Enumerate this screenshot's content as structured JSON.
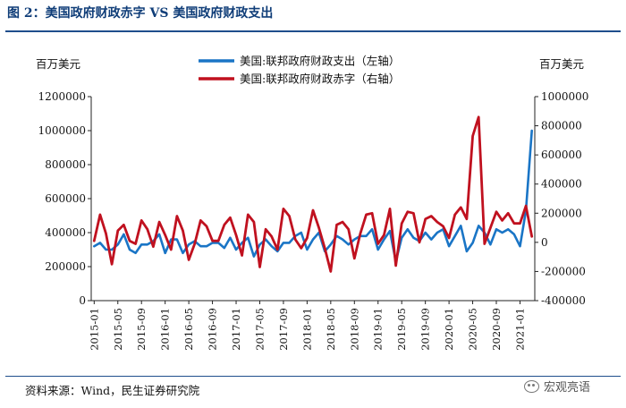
{
  "figure": {
    "title": "图 2：美国政府财政赤字 VS 美国政府财政支出",
    "source": "资料来源：Wind，民生证券研究院",
    "watermark": "宏观亮语"
  },
  "chart_data": {
    "type": "line",
    "y_left_label": "百万美元",
    "y_right_label": "百万美元",
    "y_left_lim": [
      0,
      1200000
    ],
    "y_right_lim": [
      -400000,
      1000000
    ],
    "y_left_ticks": [
      "0",
      "200000",
      "400000",
      "600000",
      "800000",
      "1000000",
      "1200000"
    ],
    "y_right_ticks": [
      "-400000",
      "-200000",
      "0",
      "200000",
      "400000",
      "600000",
      "800000",
      "1000000"
    ],
    "x_tick_labels": [
      "2015-01",
      "2015-05",
      "2015-09",
      "2016-01",
      "2016-05",
      "2016-09",
      "2017-01",
      "2017-05",
      "2017-09",
      "2018-01",
      "2018-05",
      "2018-09",
      "2019-01",
      "2019-05",
      "2019-09",
      "2020-01",
      "2020-05",
      "2020-09",
      "2021-01"
    ],
    "x": [
      "2015-01",
      "2015-02",
      "2015-03",
      "2015-04",
      "2015-05",
      "2015-06",
      "2015-07",
      "2015-08",
      "2015-09",
      "2015-10",
      "2015-11",
      "2015-12",
      "2016-01",
      "2016-02",
      "2016-03",
      "2016-04",
      "2016-05",
      "2016-06",
      "2016-07",
      "2016-08",
      "2016-09",
      "2016-10",
      "2016-11",
      "2016-12",
      "2017-01",
      "2017-02",
      "2017-03",
      "2017-04",
      "2017-05",
      "2017-06",
      "2017-07",
      "2017-08",
      "2017-09",
      "2017-10",
      "2017-11",
      "2017-12",
      "2018-01",
      "2018-02",
      "2018-03",
      "2018-04",
      "2018-05",
      "2018-06",
      "2018-07",
      "2018-08",
      "2018-09",
      "2018-10",
      "2018-11",
      "2018-12",
      "2019-01",
      "2019-02",
      "2019-03",
      "2019-04",
      "2019-05",
      "2019-06",
      "2019-07",
      "2019-08",
      "2019-09",
      "2019-10",
      "2019-11",
      "2019-12",
      "2020-01",
      "2020-02",
      "2020-03",
      "2020-04",
      "2020-05",
      "2020-06",
      "2020-07",
      "2020-08",
      "2020-09",
      "2020-10",
      "2020-11",
      "2020-12",
      "2021-01",
      "2021-02",
      "2021-03"
    ],
    "legend_position": "top",
    "series": [
      {
        "name": "美国:联邦政府财政支出（左轴）",
        "axis": "left",
        "color": "#1a75c6",
        "values": [
          320000,
          340000,
          300000,
          300000,
          330000,
          390000,
          300000,
          280000,
          330000,
          330000,
          350000,
          390000,
          280000,
          360000,
          360000,
          280000,
          330000,
          350000,
          320000,
          320000,
          340000,
          340000,
          310000,
          370000,
          300000,
          340000,
          370000,
          260000,
          330000,
          360000,
          320000,
          290000,
          340000,
          340000,
          380000,
          400000,
          300000,
          360000,
          400000,
          290000,
          330000,
          380000,
          360000,
          330000,
          360000,
          380000,
          380000,
          420000,
          300000,
          360000,
          410000,
          230000,
          370000,
          420000,
          370000,
          350000,
          400000,
          360000,
          400000,
          420000,
          320000,
          380000,
          440000,
          290000,
          340000,
          440000,
          400000,
          330000,
          420000,
          400000,
          420000,
          390000,
          320000,
          530000,
          1000000
        ]
      },
      {
        "name": "美国:联邦政府财政赤字（右轴）",
        "axis": "right",
        "color": "#c0111f",
        "values": [
          10000,
          190000,
          60000,
          -150000,
          80000,
          120000,
          10000,
          -10000,
          150000,
          90000,
          -30000,
          140000,
          50000,
          -50000,
          180000,
          80000,
          -120000,
          -10000,
          150000,
          110000,
          10000,
          10000,
          120000,
          170000,
          50000,
          -90000,
          190000,
          140000,
          -170000,
          90000,
          40000,
          -50000,
          230000,
          180000,
          20000,
          -40000,
          30000,
          220000,
          100000,
          -40000,
          -200000,
          120000,
          140000,
          90000,
          -110000,
          60000,
          190000,
          200000,
          -10000,
          50000,
          230000,
          -160000,
          130000,
          210000,
          200000,
          0,
          160000,
          180000,
          140000,
          110000,
          30000,
          190000,
          240000,
          160000,
          730000,
          860000,
          -10000,
          100000,
          210000,
          150000,
          200000,
          130000,
          130000,
          250000,
          40000
        ]
      }
    ]
  }
}
